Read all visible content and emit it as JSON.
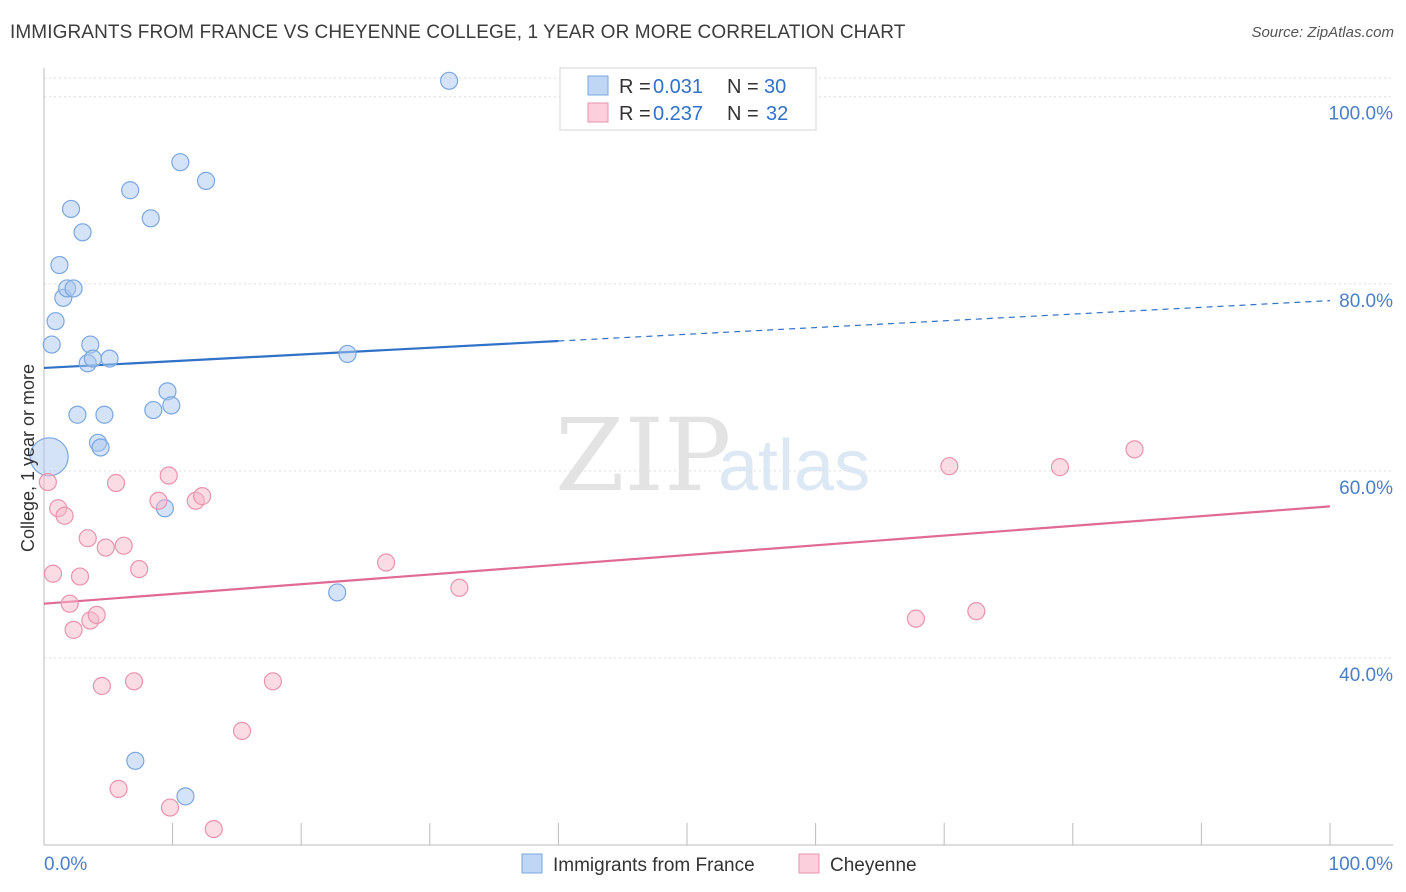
{
  "header": {
    "title": "IMMIGRANTS FROM FRANCE VS CHEYENNE COLLEGE, 1 YEAR OR MORE CORRELATION CHART",
    "source": "Source: ZipAtlas.com"
  },
  "watermark": {
    "zip": "ZIP",
    "atlas": "atlas"
  },
  "colors": {
    "blue_fill": "#a9c8f0",
    "blue_stroke": "#7aa7e0",
    "blue_line": "#2f72c8",
    "pink_fill": "#f7b8ca",
    "pink_stroke": "#ea93ad",
    "pink_line": "#e06a94",
    "grid": "#dddddd",
    "tick_text": "#4a7fc8"
  },
  "chart_data": {
    "type": "scatter",
    "title": "IMMIGRANTS FROM FRANCE VS CHEYENNE COLLEGE, 1 YEAR OR MORE CORRELATION CHART",
    "xlabel": "",
    "ylabel": "College, 1 year or more",
    "xlim": [
      0,
      100
    ],
    "ylim": [
      20,
      102
    ],
    "x_tick_labels": {
      "left": "0.0%",
      "right": "100.0%"
    },
    "y_ticks": [
      {
        "value": 40,
        "label": "40.0%"
      },
      {
        "value": 60,
        "label": "60.0%"
      },
      {
        "value": 80,
        "label": "80.0%"
      },
      {
        "value": 100,
        "label": "100.0%"
      }
    ],
    "legend": [
      {
        "r_label": "R =",
        "r_value": "0.031",
        "n_label": "N =",
        "n_value": "30"
      },
      {
        "r_label": "R =",
        "r_value": "0.237",
        "n_label": "N =",
        "n_value": "32"
      }
    ],
    "series": [
      {
        "name": "Immigrants from France",
        "color": "blue",
        "trend": {
          "x0": 0,
          "y0": 71.0,
          "x1": 100,
          "y1": 78.2,
          "solid_until": 40
        },
        "points": [
          {
            "x": 0.4,
            "y": 61.5,
            "big": true
          },
          {
            "x": 0.6,
            "y": 73.5
          },
          {
            "x": 0.9,
            "y": 76.0
          },
          {
            "x": 1.2,
            "y": 82.0
          },
          {
            "x": 1.5,
            "y": 78.5
          },
          {
            "x": 1.8,
            "y": 79.5
          },
          {
            "x": 2.1,
            "y": 88.0
          },
          {
            "x": 2.3,
            "y": 79.5
          },
          {
            "x": 2.6,
            "y": 66.0
          },
          {
            "x": 3.0,
            "y": 85.5
          },
          {
            "x": 3.4,
            "y": 71.5
          },
          {
            "x": 3.6,
            "y": 73.5
          },
          {
            "x": 3.8,
            "y": 72.0
          },
          {
            "x": 4.2,
            "y": 63.0
          },
          {
            "x": 4.4,
            "y": 62.5
          },
          {
            "x": 4.7,
            "y": 66.0
          },
          {
            "x": 5.1,
            "y": 72.0
          },
          {
            "x": 6.7,
            "y": 90.0
          },
          {
            "x": 8.3,
            "y": 87.0
          },
          {
            "x": 8.5,
            "y": 66.5
          },
          {
            "x": 9.4,
            "y": 56.0
          },
          {
            "x": 9.6,
            "y": 68.5
          },
          {
            "x": 9.9,
            "y": 67.0
          },
          {
            "x": 10.6,
            "y": 93.0
          },
          {
            "x": 12.6,
            "y": 91.0
          },
          {
            "x": 22.8,
            "y": 47.0
          },
          {
            "x": 23.6,
            "y": 72.5
          },
          {
            "x": 31.5,
            "y": 101.7
          },
          {
            "x": 7.1,
            "y": 29.0
          },
          {
            "x": 11.0,
            "y": 25.2
          }
        ]
      },
      {
        "name": "Cheyenne",
        "color": "pink",
        "trend": {
          "x0": 0,
          "y0": 45.8,
          "x1": 100,
          "y1": 56.2
        },
        "points": [
          {
            "x": 0.3,
            "y": 58.8
          },
          {
            "x": 0.7,
            "y": 49.0
          },
          {
            "x": 1.1,
            "y": 56.0
          },
          {
            "x": 1.6,
            "y": 55.2
          },
          {
            "x": 2.0,
            "y": 45.8
          },
          {
            "x": 2.3,
            "y": 43.0
          },
          {
            "x": 2.8,
            "y": 48.7
          },
          {
            "x": 3.4,
            "y": 52.8
          },
          {
            "x": 3.6,
            "y": 44.0
          },
          {
            "x": 4.1,
            "y": 44.6
          },
          {
            "x": 4.5,
            "y": 37.0
          },
          {
            "x": 4.8,
            "y": 51.8
          },
          {
            "x": 5.6,
            "y": 58.7
          },
          {
            "x": 5.8,
            "y": 26.0
          },
          {
            "x": 6.2,
            "y": 52.0
          },
          {
            "x": 7.0,
            "y": 37.5
          },
          {
            "x": 7.4,
            "y": 49.5
          },
          {
            "x": 8.9,
            "y": 56.8
          },
          {
            "x": 9.7,
            "y": 59.5
          },
          {
            "x": 9.8,
            "y": 24.0
          },
          {
            "x": 11.8,
            "y": 56.8
          },
          {
            "x": 12.3,
            "y": 57.3
          },
          {
            "x": 13.2,
            "y": 21.7
          },
          {
            "x": 15.4,
            "y": 32.2
          },
          {
            "x": 17.8,
            "y": 37.5
          },
          {
            "x": 26.6,
            "y": 50.2
          },
          {
            "x": 32.3,
            "y": 47.5
          },
          {
            "x": 67.8,
            "y": 44.2
          },
          {
            "x": 70.4,
            "y": 60.5
          },
          {
            "x": 72.5,
            "y": 45.0
          },
          {
            "x": 79.0,
            "y": 60.4
          },
          {
            "x": 84.8,
            "y": 62.3
          }
        ]
      }
    ]
  }
}
